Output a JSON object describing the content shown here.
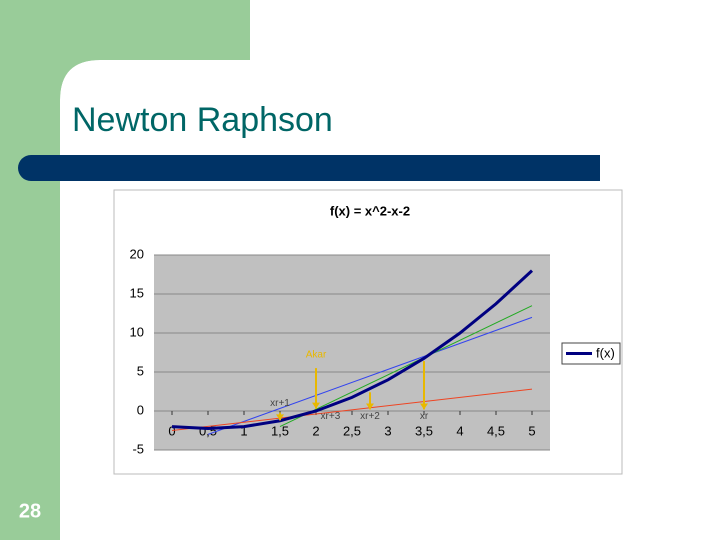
{
  "slide": {
    "title": "Newton Raphson",
    "page_number": "28"
  },
  "chart_data": {
    "type": "line",
    "title": "f(x) = x^2-x-2",
    "x": [
      0,
      0.5,
      1,
      1.5,
      2,
      2.5,
      3,
      3.5,
      4,
      4.5,
      5
    ],
    "series": [
      {
        "name": "f(x)",
        "color": "#000080",
        "values": [
          -2,
          -2.25,
          -2,
          -1.25,
          0,
          1.75,
          4,
          6.75,
          10,
          13.75,
          18
        ]
      }
    ],
    "lines": [
      {
        "color": "#3344ee",
        "x": [
          0.5,
          5
        ],
        "y": [
          -3,
          12
        ]
      },
      {
        "color": "#22aa22",
        "x": [
          1.5,
          5
        ],
        "y": [
          -2,
          13.5
        ]
      },
      {
        "color": "#ee4422",
        "x": [
          0,
          5
        ],
        "y": [
          -2.5,
          2.8
        ]
      }
    ],
    "annotations": [
      {
        "text": "Akar",
        "x": 2,
        "y": 7.2,
        "arrow": [
          5.5,
          0.3
        ]
      },
      {
        "text": "xr+1",
        "x": 1.5,
        "y": 1,
        "arrow": [
          -0.2,
          -1.2
        ]
      },
      {
        "text": "xr+3",
        "x": 2.2,
        "y": -0.7,
        "arrow": null
      },
      {
        "text": "xr+2",
        "x": 2.75,
        "y": -0.7,
        "arrow": [
          2.4,
          0.2
        ]
      },
      {
        "text": "xr",
        "x": 3.5,
        "y": -0.7,
        "arrow": [
          6.4,
          0.2
        ]
      }
    ],
    "xlim": [
      -0.25,
      5.25
    ],
    "xticks": [
      0,
      {
        "value": 0.5,
        "label": "0,5"
      },
      1,
      {
        "value": 1.5,
        "label": "1,5"
      },
      2,
      {
        "value": 2.5,
        "label": "2,5"
      },
      3,
      {
        "value": 3.5,
        "label": "3,5"
      },
      4,
      {
        "value": 4.5,
        "label": "4,5"
      },
      5
    ],
    "ylim": [
      -5,
      20
    ],
    "yticks": [
      -5,
      0,
      5,
      10,
      15,
      20
    ],
    "grid": true,
    "legend": "right"
  }
}
